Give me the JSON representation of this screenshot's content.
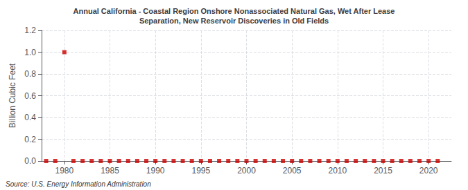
{
  "chart_data": {
    "type": "scatter",
    "title": "Annual California - Coastal Region Onshore Nonassociated Natural Gas, Wet After Lease\nSeparation, New Reservoir Discoveries in Old Fields",
    "ylabel": "Billion Cubic Feet",
    "annotation": "Source: U.S. Energy Information Administration",
    "x": [
      1978,
      1979,
      1980,
      1981,
      1982,
      1983,
      1984,
      1985,
      1986,
      1987,
      1988,
      1989,
      1990,
      1991,
      1992,
      1993,
      1994,
      1995,
      1996,
      1997,
      1998,
      1999,
      2000,
      2001,
      2002,
      2003,
      2004,
      2005,
      2006,
      2007,
      2008,
      2009,
      2010,
      2011,
      2012,
      2013,
      2014,
      2015,
      2016,
      2017,
      2018,
      2019,
      2020,
      2021
    ],
    "values": [
      0.0,
      0.0,
      1.0,
      0.0,
      0.0,
      0.0,
      0.0,
      0.0,
      0.0,
      0.0,
      0.0,
      0.0,
      0.0,
      0.0,
      0.0,
      0.0,
      0.0,
      0.0,
      0.0,
      0.0,
      0.0,
      0.0,
      0.0,
      0.0,
      0.0,
      0.0,
      0.0,
      0.0,
      0.0,
      0.0,
      0.0,
      0.0,
      0.0,
      0.0,
      0.0,
      0.0,
      0.0,
      0.0,
      0.0,
      0.0,
      0.0,
      0.0,
      0.0,
      0.0
    ],
    "color": "#cc0000",
    "marker": "square",
    "xlim": [
      1977.5,
      2022.5
    ],
    "xticks": [
      1980,
      1985,
      1990,
      1995,
      2000,
      2005,
      2010,
      2015,
      2020
    ],
    "ylim": [
      0.0,
      1.2
    ],
    "yticks": [
      {
        "value": 0.0,
        "label": "0.0"
      },
      0.2,
      0.4,
      0.6,
      0.8,
      {
        "value": 1.0,
        "label": "1.0"
      },
      1.2
    ],
    "grid": true
  }
}
